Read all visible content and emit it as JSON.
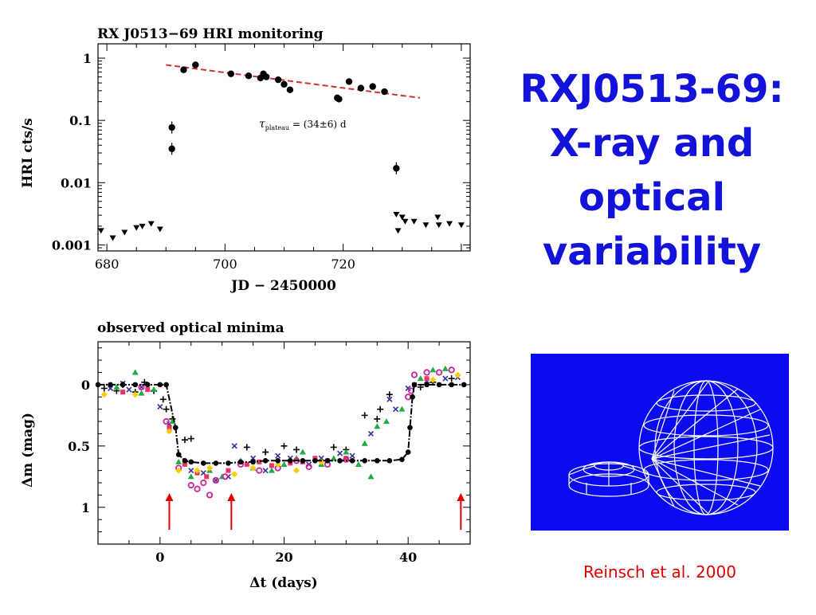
{
  "slide": {
    "title_lines": [
      "RXJ0513-69:",
      "X-ray and",
      "optical",
      "variability"
    ],
    "citation": "Reinsch et al. 2000",
    "title_color": "#1212d8",
    "citation_color": "#e00000",
    "model_background": "#0b0bf0",
    "model_icon": "binary-system-wireframe-icon"
  },
  "chart_data": [
    {
      "type": "scatter",
      "title": "RX J0513−69 HRI monitoring",
      "xlabel": "JD − 2450000",
      "ylabel": "HRI cts/s",
      "yscale": "log",
      "xlim": [
        678.5,
        741.5
      ],
      "ylim": [
        0.0008,
        1.7
      ],
      "x_ticks": [
        680,
        700,
        720
      ],
      "y_ticks": [
        0.001,
        0.01,
        0.1,
        1
      ],
      "y_tick_labels": [
        "0.001",
        "0.01",
        "0.1",
        "1"
      ],
      "annotation": {
        "symbol": "τ",
        "subscript": "plateau",
        "text": " = (34±6) d"
      },
      "fit_color": "#d03030",
      "series": [
        {
          "marker": "circle",
          "points": [
            [
              691,
              0.077
            ],
            [
              691,
              0.035
            ],
            [
              693,
              0.65
            ],
            [
              695,
              0.78
            ],
            [
              701,
              0.56
            ],
            [
              704,
              0.52
            ],
            [
              706,
              0.48
            ],
            [
              706.5,
              0.56
            ],
            [
              707,
              0.5
            ],
            [
              709,
              0.45
            ],
            [
              710,
              0.38
            ],
            [
              711,
              0.31
            ],
            [
              719,
              0.23
            ],
            [
              719.3,
              0.22
            ],
            [
              721,
              0.42
            ],
            [
              723,
              0.33
            ],
            [
              725,
              0.35
            ],
            [
              727,
              0.29
            ],
            [
              729,
              0.017
            ]
          ]
        },
        {
          "marker": "triangle-down",
          "points": [
            [
              679,
              0.0017
            ],
            [
              681,
              0.0013
            ],
            [
              683,
              0.0016
            ],
            [
              685,
              0.0019
            ],
            [
              686,
              0.002
            ],
            [
              687.5,
              0.0022
            ],
            [
              689,
              0.0018
            ],
            [
              729,
              0.0031
            ],
            [
              729.3,
              0.0017
            ],
            [
              730,
              0.0028
            ],
            [
              730.5,
              0.0024
            ],
            [
              732,
              0.0024
            ],
            [
              734,
              0.0021
            ],
            [
              736,
              0.0028
            ],
            [
              736.2,
              0.0021
            ],
            [
              738,
              0.0022
            ],
            [
              740,
              0.0021
            ]
          ]
        },
        {
          "type": "line",
          "style": "dashed",
          "points": [
            [
              690,
              0.78
            ],
            [
              733,
              0.23
            ]
          ]
        }
      ]
    },
    {
      "type": "scatter",
      "title": "observed optical minima",
      "xlabel": "Δt (days)",
      "ylabel": "Δm (mag)",
      "y_inverted": true,
      "xlim": [
        -10,
        50
      ],
      "ylim": [
        1.3,
        -0.35
      ],
      "x_ticks": [
        0,
        20,
        40
      ],
      "y_ticks": [
        0,
        0.5,
        1
      ],
      "y_tick_labels": [
        "0",
        "0.5",
        "1"
      ],
      "arrow_color": "#e00000",
      "arrows_x": [
        1.5,
        11.5,
        48.5
      ],
      "model_curve": [
        [
          -10,
          0
        ],
        [
          -8,
          0
        ],
        [
          -6,
          0
        ],
        [
          -4,
          0
        ],
        [
          -2,
          0
        ],
        [
          0,
          0
        ],
        [
          1,
          0
        ],
        [
          2.5,
          0.35
        ],
        [
          3,
          0.57
        ],
        [
          4,
          0.62
        ],
        [
          5,
          0.63
        ],
        [
          7,
          0.64
        ],
        [
          9,
          0.64
        ],
        [
          11,
          0.64
        ],
        [
          13,
          0.63
        ],
        [
          15,
          0.63
        ],
        [
          17,
          0.62
        ],
        [
          19,
          0.62
        ],
        [
          21,
          0.62
        ],
        [
          23,
          0.62
        ],
        [
          25,
          0.62
        ],
        [
          27,
          0.62
        ],
        [
          29,
          0.62
        ],
        [
          31,
          0.62
        ],
        [
          33,
          0.62
        ],
        [
          35,
          0.62
        ],
        [
          37,
          0.62
        ],
        [
          39,
          0.61
        ],
        [
          40,
          0.55
        ],
        [
          40.3,
          0.35
        ],
        [
          40.7,
          0.1
        ],
        [
          41,
          0
        ],
        [
          43,
          0
        ],
        [
          45,
          0
        ],
        [
          47,
          0
        ],
        [
          49,
          0
        ]
      ],
      "series": [
        {
          "marker": "plus",
          "color": "#000000",
          "points": [
            [
              -9,
              0.03
            ],
            [
              -7,
              0.05
            ],
            [
              -6,
              0.0
            ],
            [
              -4,
              0.06
            ],
            [
              -2.5,
              -0.02
            ],
            [
              -1,
              0.05
            ],
            [
              0.5,
              0.12
            ],
            [
              1,
              0.2
            ],
            [
              2,
              0.28
            ],
            [
              4,
              0.45
            ],
            [
              5,
              0.44
            ],
            [
              14,
              0.51
            ],
            [
              17,
              0.55
            ],
            [
              20,
              0.5
            ],
            [
              22,
              0.53
            ],
            [
              28,
              0.51
            ],
            [
              30,
              0.53
            ],
            [
              33,
              0.25
            ],
            [
              35,
              0.28
            ],
            [
              35.5,
              0.2
            ],
            [
              37,
              0.08
            ],
            [
              42,
              0.02
            ],
            [
              44,
              -0.02
            ],
            [
              47,
              -0.05
            ]
          ]
        },
        {
          "marker": "cross",
          "color": "#333399",
          "points": [
            [
              -8,
              0.03
            ],
            [
              -6,
              -0.01
            ],
            [
              -5,
              0.04
            ],
            [
              -3,
              0.02
            ],
            [
              0,
              0.18
            ],
            [
              1.5,
              0.32
            ],
            [
              5,
              0.7
            ],
            [
              7,
              0.72
            ],
            [
              9,
              0.78
            ],
            [
              11,
              0.75
            ],
            [
              12,
              0.5
            ],
            [
              15,
              0.6
            ],
            [
              17,
              0.7
            ],
            [
              19,
              0.58
            ],
            [
              21,
              0.6
            ],
            [
              24,
              0.65
            ],
            [
              26,
              0.6
            ],
            [
              29,
              0.56
            ],
            [
              31,
              0.58
            ],
            [
              34,
              0.4
            ],
            [
              37,
              0.12
            ],
            [
              38,
              0.2
            ],
            [
              40,
              0.03
            ],
            [
              43,
              -0.03
            ],
            [
              46,
              -0.05
            ],
            [
              48,
              -0.06
            ]
          ]
        },
        {
          "marker": "triangle",
          "color": "#22aa44",
          "points": [
            [
              -7,
              0.02
            ],
            [
              -4,
              -0.1
            ],
            [
              -3,
              0.07
            ],
            [
              -1,
              0.04
            ],
            [
              2,
              0.3
            ],
            [
              3,
              0.63
            ],
            [
              5,
              0.75
            ],
            [
              8,
              0.7
            ],
            [
              10,
              0.75
            ],
            [
              13,
              0.62
            ],
            [
              15,
              0.68
            ],
            [
              18,
              0.7
            ],
            [
              20,
              0.65
            ],
            [
              22,
              0.6
            ],
            [
              23,
              0.55
            ],
            [
              26,
              0.65
            ],
            [
              28,
              0.6
            ],
            [
              30,
              0.55
            ],
            [
              32,
              0.65
            ],
            [
              33,
              0.48
            ],
            [
              34,
              0.75
            ],
            [
              35,
              0.34
            ],
            [
              36.5,
              0.3
            ],
            [
              39,
              0.2
            ],
            [
              42,
              -0.05
            ],
            [
              44,
              -0.12
            ],
            [
              46,
              -0.13
            ]
          ]
        },
        {
          "marker": "square",
          "color": "#ee3366",
          "points": [
            [
              -6,
              0.06
            ],
            [
              -2,
              0.04
            ],
            [
              1.5,
              0.35
            ],
            [
              4,
              0.65
            ],
            [
              6,
              0.72
            ],
            [
              7.5,
              0.75
            ],
            [
              11,
              0.7
            ],
            [
              14,
              0.65
            ],
            [
              16,
              0.63
            ],
            [
              18,
              0.66
            ],
            [
              21,
              0.64
            ],
            [
              23,
              0.63
            ],
            [
              25,
              0.6
            ],
            [
              27,
              0.62
            ],
            [
              30,
              0.6
            ],
            [
              41,
              0.0
            ],
            [
              43,
              -0.05
            ]
          ]
        },
        {
          "marker": "ring",
          "color": "#cc2299",
          "points": [
            [
              -3,
              0.02
            ],
            [
              1,
              0.3
            ],
            [
              3,
              0.68
            ],
            [
              5,
              0.82
            ],
            [
              6,
              0.85
            ],
            [
              7,
              0.8
            ],
            [
              8,
              0.9
            ],
            [
              9,
              0.78
            ],
            [
              10.5,
              0.75
            ],
            [
              13,
              0.65
            ],
            [
              16,
              0.7
            ],
            [
              19,
              0.68
            ],
            [
              22,
              0.62
            ],
            [
              24,
              0.67
            ],
            [
              27,
              0.65
            ],
            [
              30,
              0.61
            ],
            [
              40,
              0.1
            ],
            [
              40.5,
              0.05
            ],
            [
              41,
              -0.08
            ],
            [
              43,
              -0.1
            ],
            [
              45,
              -0.1
            ],
            [
              47,
              -0.12
            ]
          ]
        },
        {
          "marker": "diamond",
          "color": "#ffcc00",
          "points": [
            [
              -9,
              0.08
            ],
            [
              -4,
              0.08
            ],
            [
              1.5,
              0.38
            ],
            [
              3,
              0.7
            ],
            [
              6,
              0.7
            ],
            [
              8,
              0.68
            ],
            [
              12,
              0.73
            ],
            [
              15,
              0.68
            ],
            [
              19,
              0.65
            ],
            [
              22,
              0.7
            ],
            [
              26,
              0.63
            ],
            [
              44,
              -0.04
            ],
            [
              48,
              -0.08
            ]
          ]
        }
      ]
    }
  ]
}
